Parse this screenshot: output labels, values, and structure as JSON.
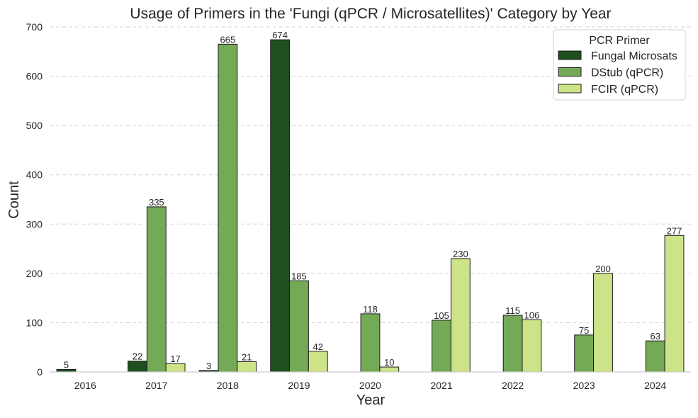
{
  "chart_data": {
    "type": "bar",
    "title": "Usage of Primers in the 'Fungi (qPCR / Microsatellites)' Category by Year",
    "xlabel": "Year",
    "ylabel": "Count",
    "categories": [
      "2016",
      "2017",
      "2018",
      "2019",
      "2020",
      "2021",
      "2022",
      "2023",
      "2024"
    ],
    "ylim": [
      0,
      700
    ],
    "yticks": [
      0,
      100,
      200,
      300,
      400,
      500,
      600,
      700
    ],
    "grid": "y-dashed",
    "legend_title": "PCR Primer",
    "legend_position": "top-right",
    "series": [
      {
        "name": "Fungal Microsats",
        "color": "#1f4e1f",
        "values": [
          5,
          22,
          3,
          674,
          null,
          null,
          null,
          null,
          null
        ]
      },
      {
        "name": "DStub (qPCR)",
        "color": "#74aa56",
        "values": [
          null,
          335,
          665,
          185,
          118,
          105,
          115,
          75,
          63
        ]
      },
      {
        "name": "FCIR (qPCR)",
        "color": "#cde388",
        "values": [
          null,
          17,
          21,
          42,
          10,
          230,
          106,
          200,
          277
        ]
      }
    ]
  }
}
